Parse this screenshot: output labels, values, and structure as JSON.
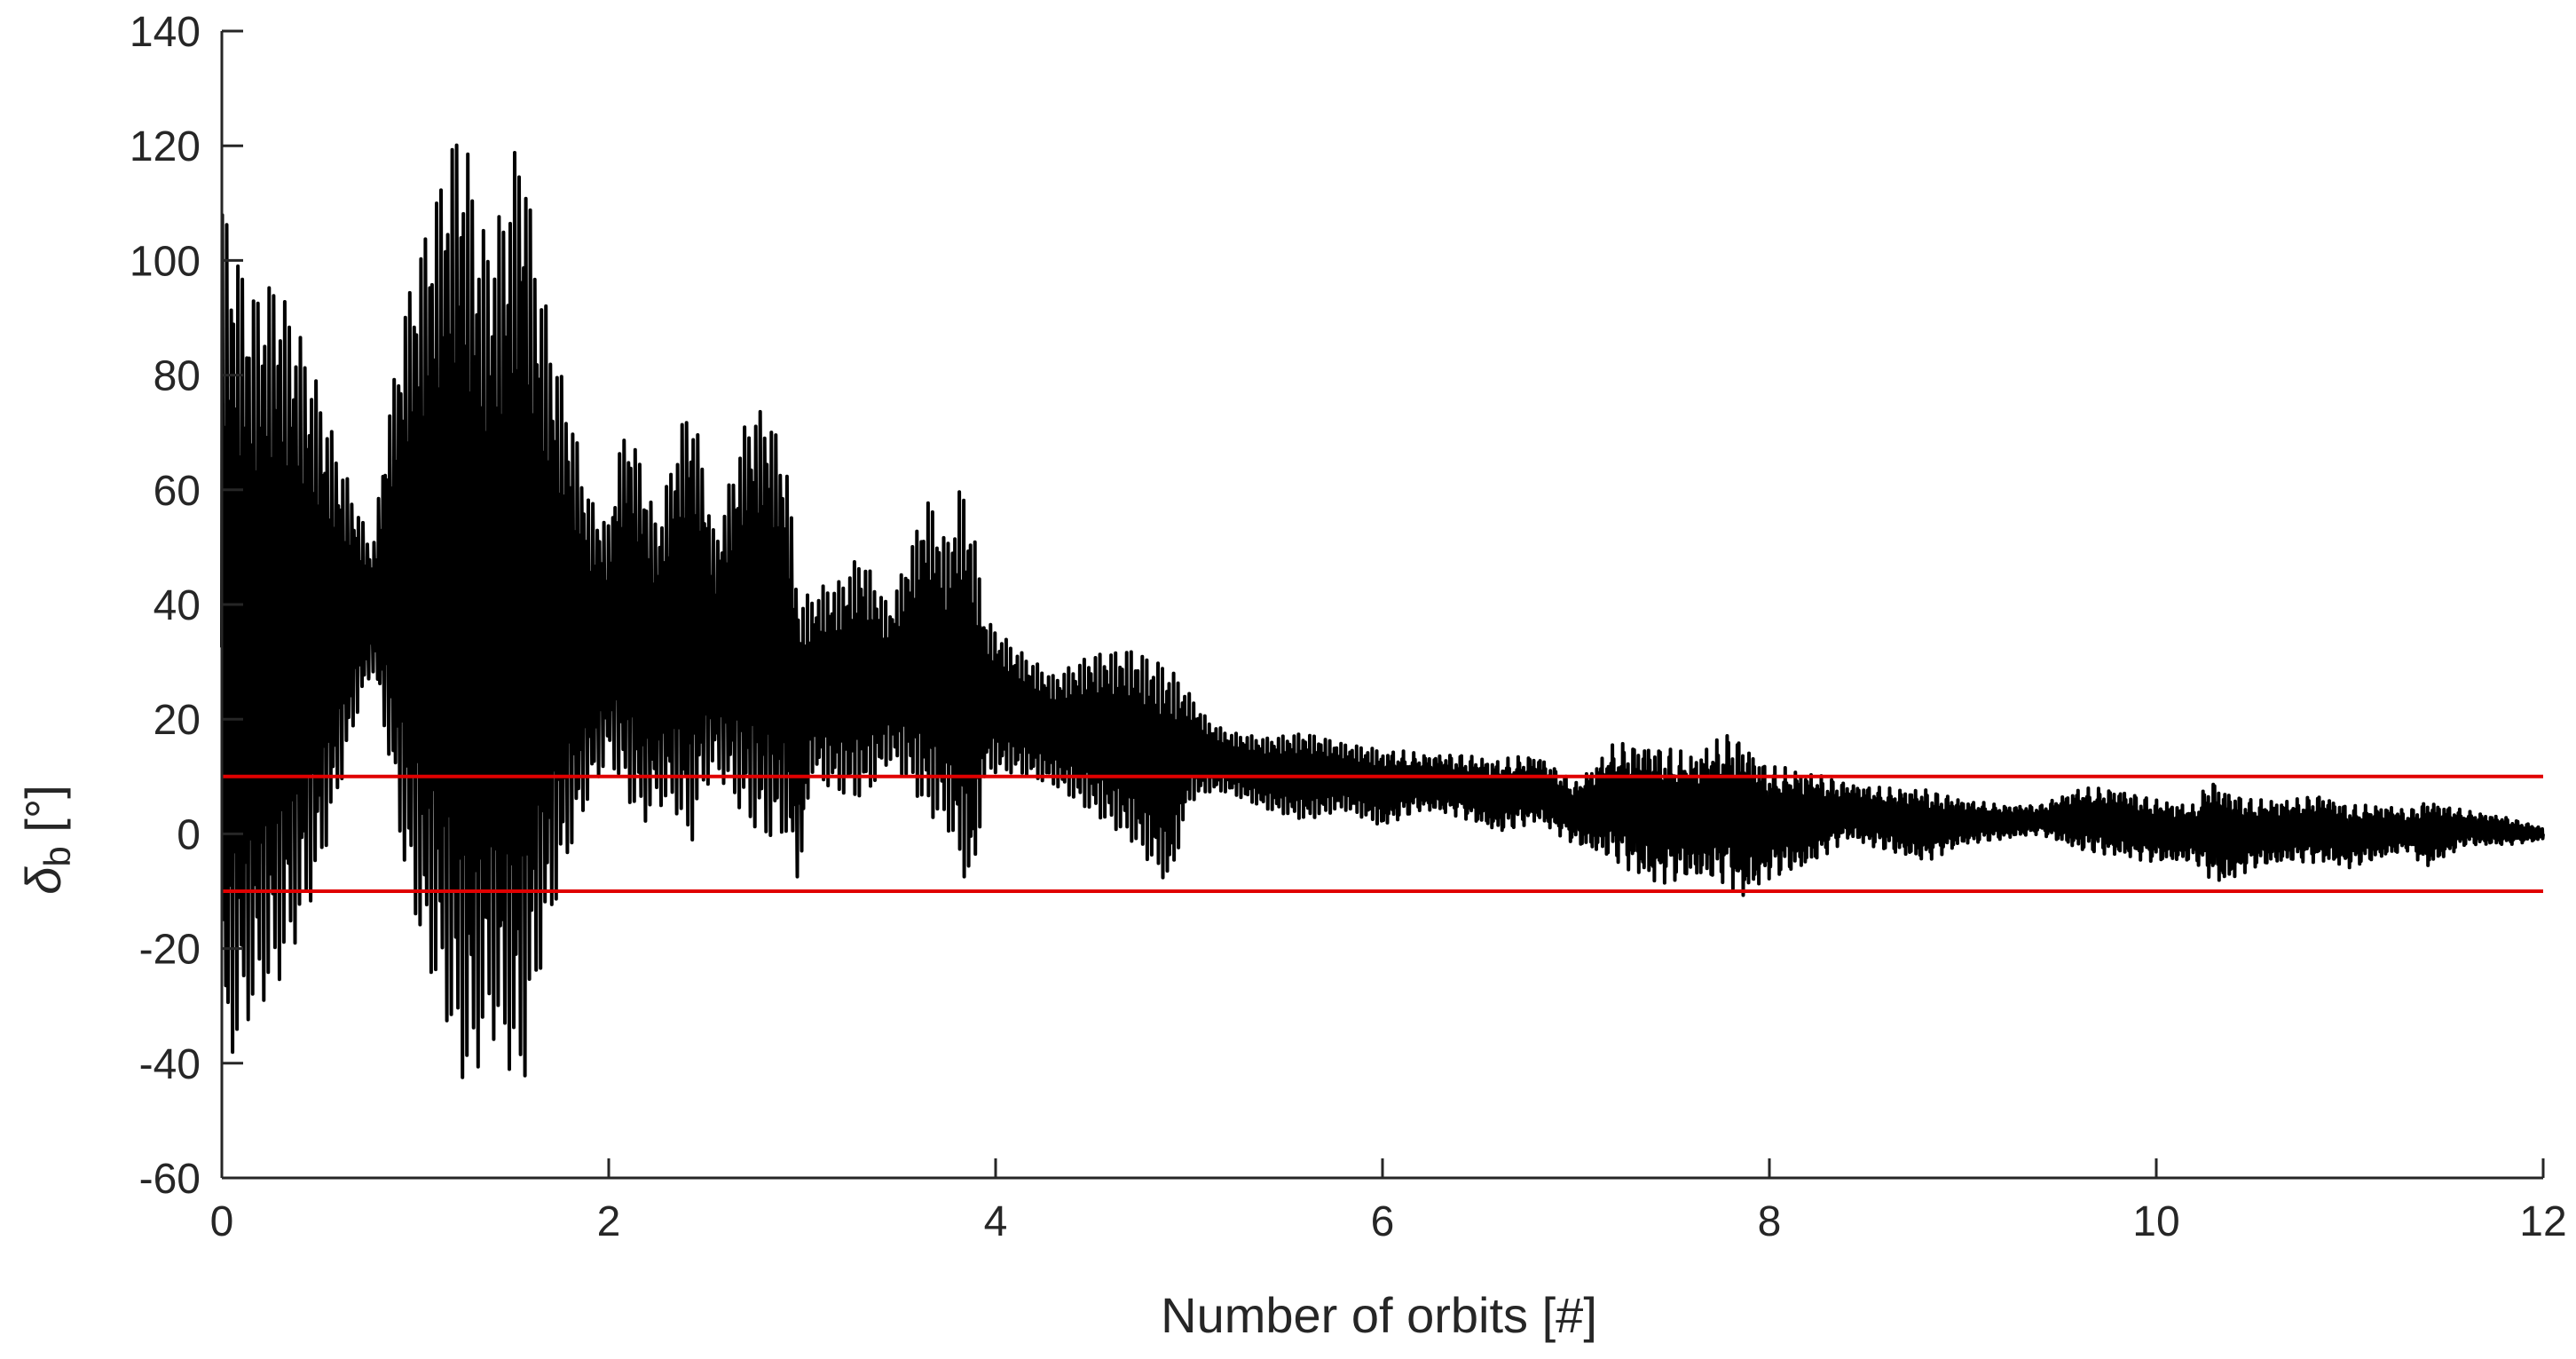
{
  "chart_data": {
    "type": "line",
    "title": "",
    "xlabel": "Number of orbits [#]",
    "ylabel": {
      "symbol": "δ",
      "subscript": "b",
      "unit": " [°]"
    },
    "xlim": [
      0,
      12
    ],
    "ylim": [
      -60,
      140
    ],
    "xticks": [
      0,
      2,
      4,
      6,
      8,
      10,
      12
    ],
    "yticks": [
      -60,
      -40,
      -20,
      0,
      20,
      40,
      60,
      80,
      100,
      120,
      140
    ],
    "grid": false,
    "legend": "none",
    "colors": {
      "signal": "#000000",
      "bounds": "#e00000",
      "axis": "#262626"
    },
    "threshold_lines": [
      10,
      -10
    ],
    "series": [
      {
        "envelope_upper": {
          "x": [
            0,
            0.05,
            0.15,
            0.28,
            0.4,
            0.5,
            0.6,
            0.7,
            0.78,
            0.85,
            0.95,
            1.05,
            1.15,
            1.22,
            1.27,
            1.32,
            1.38,
            1.45,
            1.52,
            1.56,
            1.6,
            1.7,
            1.8,
            1.9,
            2.0,
            2.05,
            2.1,
            2.18,
            2.25,
            2.35,
            2.42,
            2.48,
            2.55,
            2.62,
            2.72,
            2.82,
            2.92,
            2.98,
            3.05,
            3.1,
            3.2,
            3.3,
            3.38,
            3.45,
            3.55,
            3.65,
            3.75,
            3.82,
            3.88,
            3.95,
            4.1,
            4.3,
            4.5,
            4.7,
            4.9,
            5.0,
            5.1,
            5.2,
            5.4,
            5.6,
            5.8,
            6.0,
            6.2,
            6.4,
            6.6,
            6.8,
            7.0,
            7.2,
            7.4,
            7.6,
            7.8,
            7.85,
            8.0,
            8.2,
            8.4,
            8.6,
            8.8,
            9.0,
            9.2,
            9.4,
            9.6,
            9.8,
            10.0,
            10.2,
            10.28,
            10.35,
            10.5,
            10.7,
            10.85,
            11.0,
            11.2,
            11.3,
            11.4,
            11.6,
            11.8,
            12.0
          ],
          "y": [
            115,
            108,
            97,
            100,
            90,
            80,
            68,
            58,
            50,
            72,
            95,
            108,
            120,
            128,
            124,
            112,
            107,
            113,
            124,
            128,
            110,
            90,
            76,
            60,
            55,
            68,
            73,
            65,
            55,
            70,
            78,
            68,
            52,
            62,
            75,
            76,
            66,
            44,
            42,
            44,
            45,
            50,
            45,
            40,
            50,
            60,
            52,
            63,
            56,
            38,
            33,
            28,
            32,
            33,
            30,
            25,
            20,
            18,
            17,
            18,
            16,
            15,
            14,
            14,
            13,
            14,
            9,
            16,
            16,
            14,
            18,
            17,
            12,
            11,
            9,
            8,
            8,
            6,
            5,
            5,
            8,
            8,
            6,
            5,
            10,
            8,
            6,
            6,
            7,
            5,
            5,
            4,
            6,
            4,
            3,
            1
          ]
        },
        "envelope_lower": {
          "x": [
            0,
            0.05,
            0.15,
            0.28,
            0.4,
            0.5,
            0.6,
            0.7,
            0.78,
            0.85,
            0.95,
            1.05,
            1.15,
            1.22,
            1.27,
            1.32,
            1.38,
            1.45,
            1.52,
            1.56,
            1.6,
            1.7,
            1.8,
            1.9,
            2.0,
            2.05,
            2.1,
            2.18,
            2.25,
            2.35,
            2.42,
            2.48,
            2.55,
            2.62,
            2.72,
            2.82,
            2.92,
            2.98,
            3.05,
            3.1,
            3.2,
            3.3,
            3.38,
            3.45,
            3.55,
            3.65,
            3.75,
            3.82,
            3.88,
            3.95,
            4.1,
            4.3,
            4.5,
            4.7,
            4.9,
            5.0,
            5.1,
            5.2,
            5.4,
            5.6,
            5.8,
            6.0,
            6.2,
            6.4,
            6.6,
            6.8,
            7.0,
            7.2,
            7.4,
            7.6,
            7.8,
            7.85,
            8.0,
            8.2,
            8.4,
            8.6,
            8.8,
            9.0,
            9.2,
            9.4,
            9.6,
            9.8,
            10.0,
            10.2,
            10.28,
            10.35,
            10.5,
            10.7,
            10.85,
            11.0,
            11.2,
            11.3,
            11.4,
            11.6,
            11.8,
            12.0
          ],
          "y": [
            -50,
            -43,
            -35,
            -30,
            -20,
            -10,
            5,
            20,
            28,
            15,
            -10,
            -25,
            -35,
            -45,
            -49,
            -45,
            -38,
            -42,
            -48,
            -49,
            -35,
            -18,
            -5,
            5,
            12,
            8,
            4,
            0,
            4,
            2,
            -5,
            5,
            10,
            6,
            0,
            -3,
            -2,
            -10,
            10,
            8,
            6,
            5,
            8,
            12,
            8,
            2,
            0,
            -8,
            -12,
            10,
            10,
            8,
            3,
            -2,
            -10,
            5,
            7,
            7,
            4,
            2,
            4,
            1,
            4,
            3,
            0,
            2,
            -2,
            -5,
            -9,
            -8,
            -9,
            -12,
            -8,
            -6,
            -1,
            -3,
            -5,
            -2,
            -1,
            0,
            -3,
            -4,
            -5,
            -5,
            -8,
            -9,
            -6,
            -5,
            -5,
            -6,
            -4,
            -3,
            -6,
            -2,
            -2,
            -1
          ]
        }
      }
    ]
  }
}
